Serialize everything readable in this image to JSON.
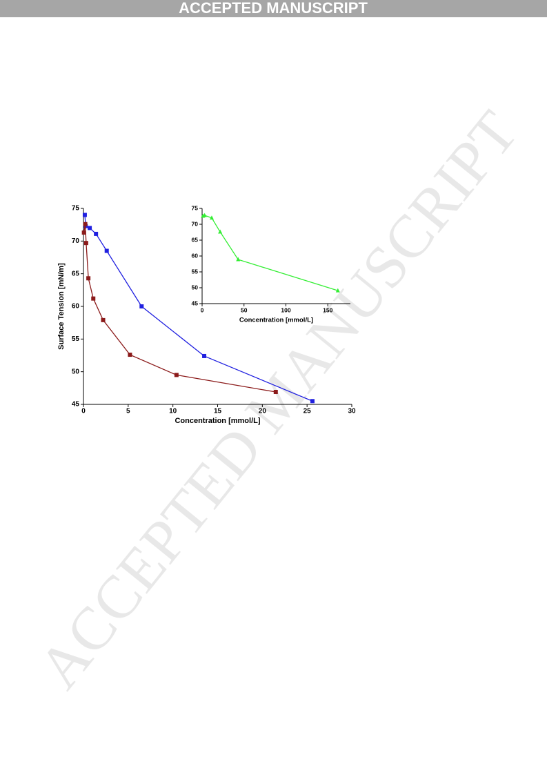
{
  "header": {
    "title": "ACCEPTED MANUSCRIPT"
  },
  "watermark": "ACCEPTED MANUSCRIPT",
  "chart_data": [
    {
      "type": "line",
      "x_label": "Concentration [mmol/L]",
      "y_label": "Surface Tension [mN/m]",
      "xlim": [
        0,
        30
      ],
      "xticks": [
        0,
        5,
        10,
        15,
        20,
        25,
        30
      ],
      "ylim": [
        45,
        75
      ],
      "yticks": [
        45,
        50,
        55,
        60,
        65,
        70,
        75
      ],
      "series": [
        {
          "color": "#2020e0",
          "marker": "square",
          "x": [
            0.15,
            0.25,
            0.7,
            1.4,
            2.6,
            6.5,
            13.5,
            25.6
          ],
          "values": [
            74.0,
            72.3,
            72.0,
            71.1,
            68.5,
            60.0,
            52.4,
            45.5
          ]
        },
        {
          "color": "#8b1a1a",
          "marker": "square",
          "x": [
            0.05,
            0.2,
            0.3,
            0.55,
            1.1,
            2.2,
            5.2,
            10.4,
            21.5
          ],
          "values": [
            71.3,
            72.6,
            69.7,
            64.3,
            61.2,
            57.9,
            52.6,
            49.5,
            46.9
          ]
        }
      ]
    },
    {
      "type": "line",
      "x_label": "Concentration [mmol/L]",
      "xlim": [
        0,
        177
      ],
      "xticks": [
        0,
        50,
        100,
        150
      ],
      "ylim": [
        45,
        75
      ],
      "yticks": [
        45,
        50,
        55,
        60,
        65,
        70,
        75
      ],
      "series": [
        {
          "color": "#33ee33",
          "marker": "triangle",
          "x": [
            1,
            3,
            11.5,
            21.5,
            43,
            162
          ],
          "values": [
            72.6,
            72.8,
            72.0,
            67.6,
            58.9,
            49.1
          ]
        }
      ]
    }
  ]
}
